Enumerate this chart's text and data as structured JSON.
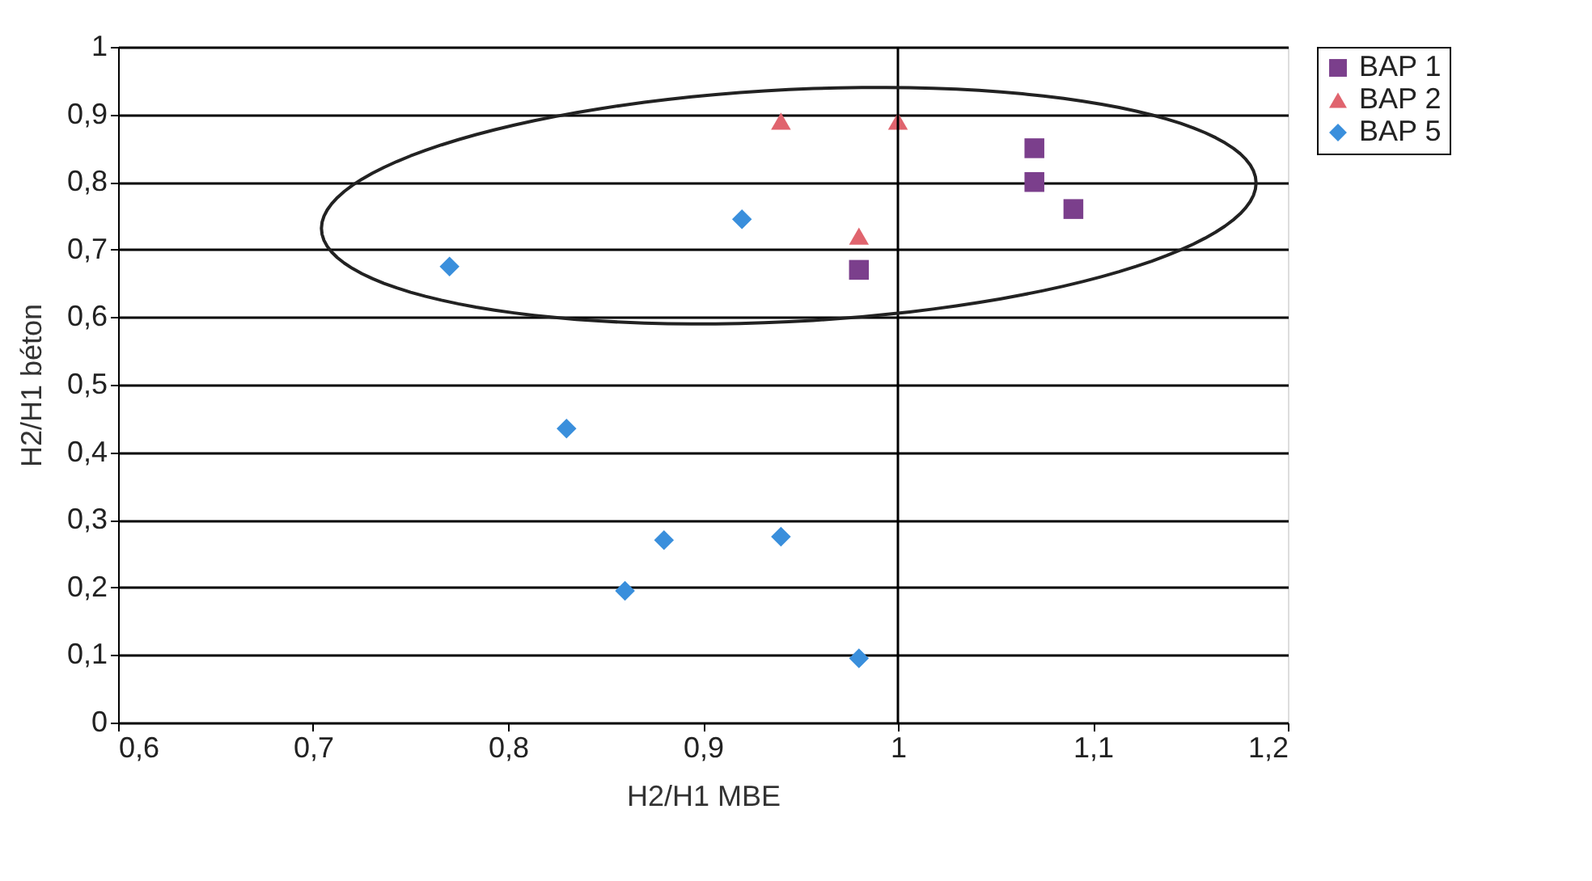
{
  "chart_data": {
    "type": "scatter",
    "xlabel": "H2/H1 MBE",
    "ylabel": "H2/H1 béton",
    "series": [
      {
        "name": "BAP 1",
        "color": "#7b3f8c",
        "marker": "square",
        "x": [
          1.07,
          1.07,
          1.09,
          0.98
        ],
        "values": [
          0.85,
          0.8,
          0.76,
          0.67
        ]
      },
      {
        "name": "BAP 2",
        "color": "#e0646e",
        "marker": "triangle",
        "x": [
          0.94,
          1.0,
          0.98
        ],
        "values": [
          0.89,
          0.89,
          0.72
        ]
      },
      {
        "name": "BAP 5",
        "color": "#3a8fdc",
        "marker": "diamond",
        "x": [
          0.77,
          0.92,
          0.83,
          0.88,
          0.94,
          0.86,
          0.98
        ],
        "values": [
          0.675,
          0.745,
          0.435,
          0.27,
          0.275,
          0.195,
          0.095
        ]
      }
    ],
    "xlim": [
      0.6,
      1.2
    ],
    "xticks": [
      {
        "value": 0.6,
        "label": "0,6"
      },
      {
        "value": 0.7,
        "label": "0,7"
      },
      {
        "value": 0.8,
        "label": "0,8"
      },
      {
        "value": 0.9,
        "label": "0,9"
      },
      1,
      {
        "value": 1.1,
        "label": "1,1"
      },
      {
        "value": 1.2,
        "label": "1,2"
      }
    ],
    "ylim": [
      0,
      1
    ],
    "yticks": [
      0,
      {
        "value": 0.1,
        "label": "0,1"
      },
      {
        "value": 0.2,
        "label": "0,2"
      },
      {
        "value": 0.3,
        "label": "0,3"
      },
      {
        "value": 0.4,
        "label": "0,4"
      },
      {
        "value": 0.5,
        "label": "0,5"
      },
      {
        "value": 0.6,
        "label": "0,6"
      },
      {
        "value": 0.7,
        "label": "0,7"
      },
      {
        "value": 0.8,
        "label": "0,8"
      },
      {
        "value": 0.9,
        "label": "0,9"
      },
      1
    ],
    "ref_lines": [
      {
        "axis": "x",
        "value": 1,
        "color": "#000000"
      }
    ],
    "grid": "y",
    "legend": "right"
  }
}
